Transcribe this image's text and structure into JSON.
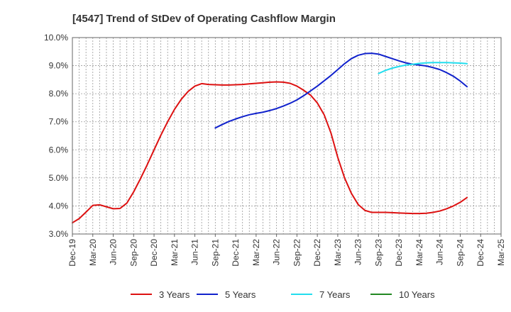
{
  "chart_data": {
    "type": "line",
    "title": "[4547]  Trend of StDev of Operating Cashflow Margin",
    "xlabel": "",
    "ylabel": "",
    "ylim": [
      3.0,
      10.0
    ],
    "y_ticks": [
      "3.0%",
      "4.0%",
      "5.0%",
      "6.0%",
      "7.0%",
      "8.0%",
      "9.0%",
      "10.0%"
    ],
    "x_ticks": [
      "Dec-19",
      "Mar-20",
      "Jun-20",
      "Sep-20",
      "Dec-20",
      "Mar-21",
      "Jun-21",
      "Sep-21",
      "Dec-21",
      "Mar-22",
      "Jun-22",
      "Sep-22",
      "Dec-22",
      "Mar-23",
      "Jun-23",
      "Sep-23",
      "Dec-23",
      "Mar-24",
      "Jun-24",
      "Sep-24",
      "Dec-24",
      "Mar-25"
    ],
    "grid": true,
    "legend_position": "bottom",
    "series": [
      {
        "name": "3 Years",
        "color": "#dd1111",
        "points": [
          [
            "Dec-19",
            3.4
          ],
          [
            "Jan-20",
            3.55
          ],
          [
            "Feb-20",
            3.78
          ],
          [
            "Mar-20",
            4.02
          ],
          [
            "Apr-20",
            4.04
          ],
          [
            "May-20",
            3.97
          ],
          [
            "Jun-20",
            3.9
          ],
          [
            "Jul-20",
            3.91
          ],
          [
            "Aug-20",
            4.1
          ],
          [
            "Sep-20",
            4.5
          ],
          [
            "Oct-20",
            4.97
          ],
          [
            "Nov-20",
            5.47
          ],
          [
            "Dec-20",
            6.0
          ],
          [
            "Jan-21",
            6.52
          ],
          [
            "Feb-21",
            7.0
          ],
          [
            "Mar-21",
            7.44
          ],
          [
            "Apr-21",
            7.8
          ],
          [
            "May-21",
            8.08
          ],
          [
            "Jun-21",
            8.27
          ],
          [
            "Jul-21",
            8.36
          ],
          [
            "Aug-21",
            8.33
          ],
          [
            "Sep-21",
            8.32
          ],
          [
            "Oct-21",
            8.31
          ],
          [
            "Nov-21",
            8.31
          ],
          [
            "Dec-21",
            8.32
          ],
          [
            "Jan-22",
            8.33
          ],
          [
            "Feb-22",
            8.35
          ],
          [
            "Mar-22",
            8.37
          ],
          [
            "Apr-22",
            8.39
          ],
          [
            "May-22",
            8.41
          ],
          [
            "Jun-22",
            8.42
          ],
          [
            "Jul-22",
            8.41
          ],
          [
            "Aug-22",
            8.37
          ],
          [
            "Sep-22",
            8.27
          ],
          [
            "Oct-22",
            8.12
          ],
          [
            "Nov-22",
            7.95
          ],
          [
            "Dec-22",
            7.67
          ],
          [
            "Jan-23",
            7.25
          ],
          [
            "Feb-23",
            6.6
          ],
          [
            "Mar-23",
            5.73
          ],
          [
            "Apr-23",
            5.0
          ],
          [
            "May-23",
            4.45
          ],
          [
            "Jun-23",
            4.05
          ],
          [
            "Jul-23",
            3.84
          ],
          [
            "Aug-23",
            3.77
          ],
          [
            "Sep-23",
            3.77
          ],
          [
            "Oct-23",
            3.77
          ],
          [
            "Nov-23",
            3.76
          ],
          [
            "Dec-23",
            3.75
          ],
          [
            "Jan-24",
            3.74
          ],
          [
            "Feb-24",
            3.73
          ],
          [
            "Mar-24",
            3.73
          ],
          [
            "Apr-24",
            3.74
          ],
          [
            "May-24",
            3.77
          ],
          [
            "Jun-24",
            3.82
          ],
          [
            "Jul-24",
            3.9
          ],
          [
            "Aug-24",
            4.0
          ],
          [
            "Sep-24",
            4.13
          ],
          [
            "Oct-24",
            4.3
          ]
        ]
      },
      {
        "name": "5 Years",
        "color": "#1122cc",
        "points": [
          [
            "Sep-21",
            6.78
          ],
          [
            "Oct-21",
            6.9
          ],
          [
            "Nov-21",
            7.01
          ],
          [
            "Dec-21",
            7.1
          ],
          [
            "Jan-22",
            7.18
          ],
          [
            "Feb-22",
            7.25
          ],
          [
            "Mar-22",
            7.3
          ],
          [
            "Apr-22",
            7.34
          ],
          [
            "May-22",
            7.4
          ],
          [
            "Jun-22",
            7.47
          ],
          [
            "Jul-22",
            7.56
          ],
          [
            "Aug-22",
            7.66
          ],
          [
            "Sep-22",
            7.78
          ],
          [
            "Oct-22",
            7.93
          ],
          [
            "Nov-22",
            8.1
          ],
          [
            "Dec-22",
            8.27
          ],
          [
            "Jan-23",
            8.46
          ],
          [
            "Feb-23",
            8.65
          ],
          [
            "Mar-23",
            8.86
          ],
          [
            "Apr-23",
            9.07
          ],
          [
            "May-23",
            9.25
          ],
          [
            "Jun-23",
            9.37
          ],
          [
            "Jul-23",
            9.43
          ],
          [
            "Aug-23",
            9.44
          ],
          [
            "Sep-23",
            9.41
          ],
          [
            "Oct-23",
            9.33
          ],
          [
            "Nov-23",
            9.25
          ],
          [
            "Dec-23",
            9.17
          ],
          [
            "Jan-24",
            9.1
          ],
          [
            "Feb-24",
            9.05
          ],
          [
            "Mar-24",
            9.02
          ],
          [
            "Apr-24",
            8.99
          ],
          [
            "May-24",
            8.93
          ],
          [
            "Jun-24",
            8.86
          ],
          [
            "Jul-24",
            8.75
          ],
          [
            "Aug-24",
            8.62
          ],
          [
            "Sep-24",
            8.45
          ],
          [
            "Oct-24",
            8.25
          ]
        ]
      },
      {
        "name": "7 Years",
        "color": "#22ddee",
        "points": [
          [
            "Sep-23",
            8.72
          ],
          [
            "Oct-23",
            8.83
          ],
          [
            "Nov-23",
            8.91
          ],
          [
            "Dec-23",
            8.97
          ],
          [
            "Jan-24",
            9.02
          ],
          [
            "Feb-24",
            9.05
          ],
          [
            "Mar-24",
            9.08
          ],
          [
            "Apr-24",
            9.1
          ],
          [
            "May-24",
            9.11
          ],
          [
            "Jun-24",
            9.11
          ],
          [
            "Jul-24",
            9.11
          ],
          [
            "Aug-24",
            9.1
          ],
          [
            "Sep-24",
            9.09
          ],
          [
            "Oct-24",
            9.07
          ]
        ]
      },
      {
        "name": "10 Years",
        "color": "#228822",
        "points": []
      }
    ]
  }
}
